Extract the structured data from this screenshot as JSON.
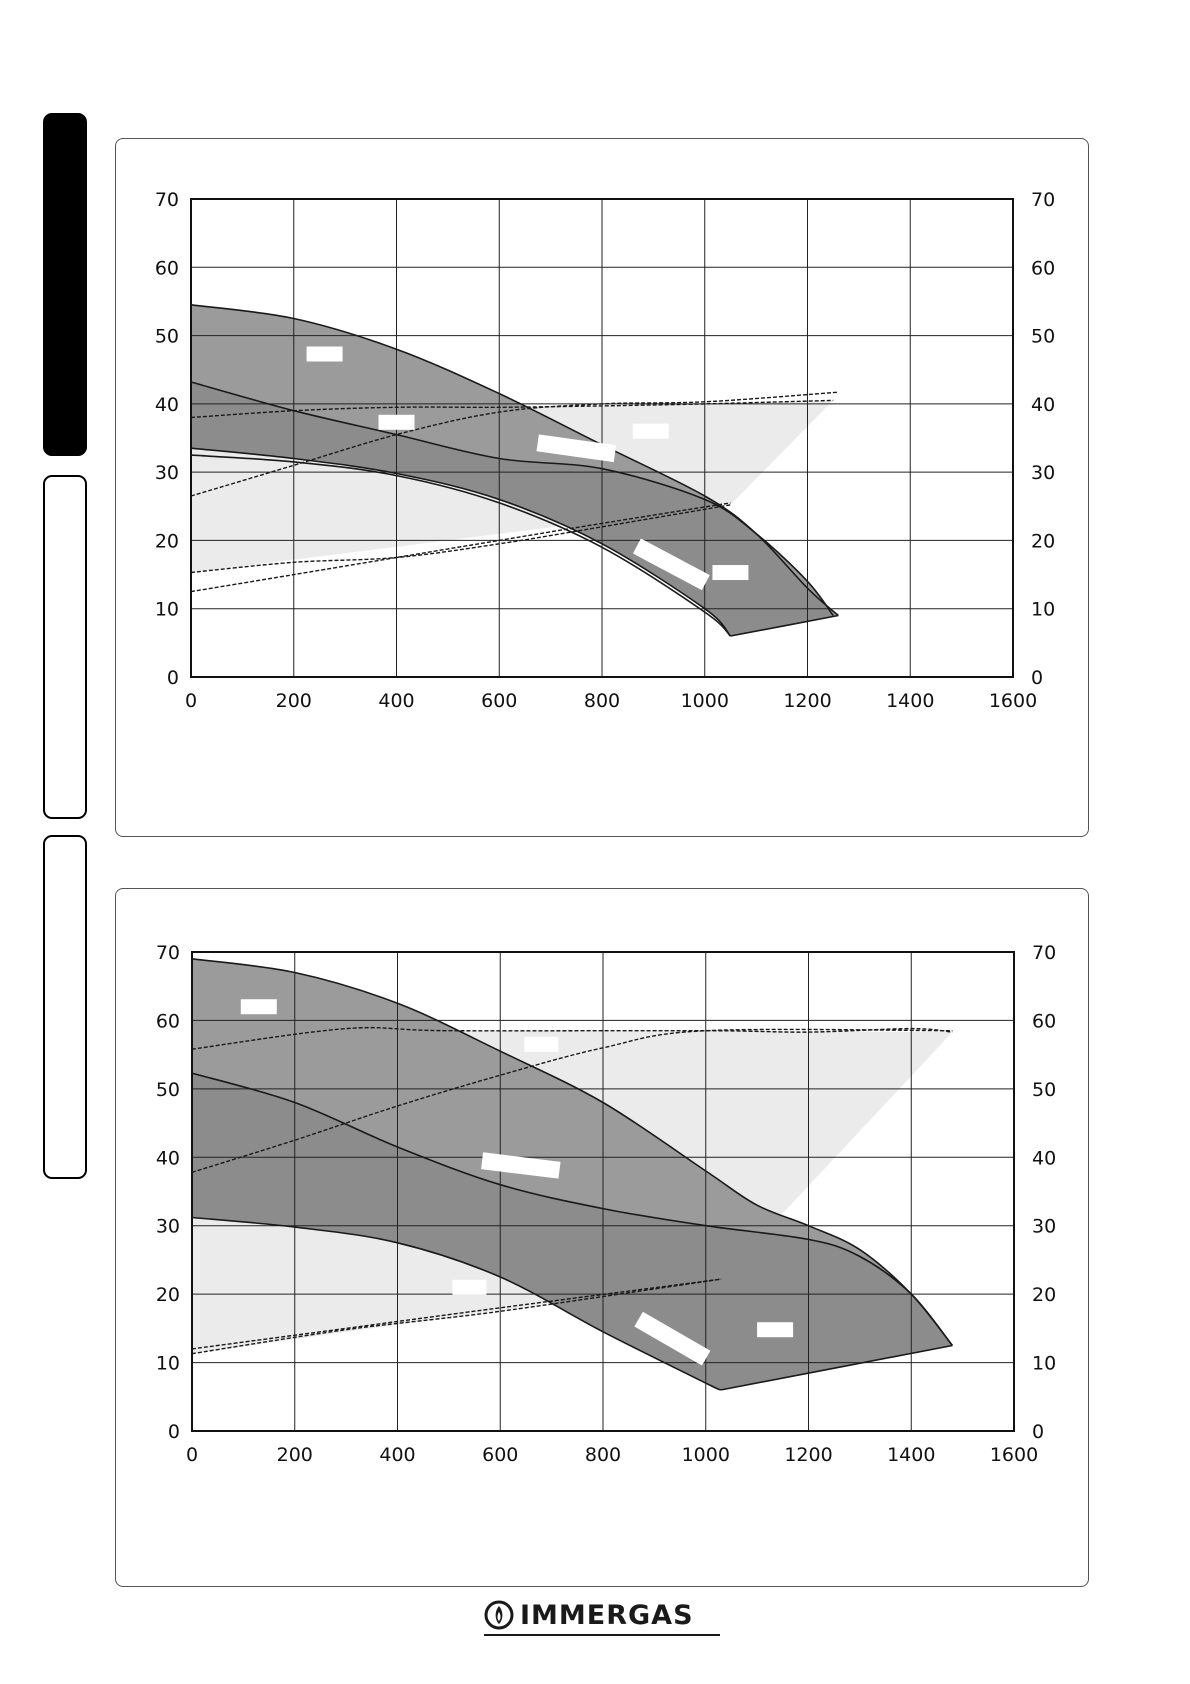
{
  "side_tabs": [
    {
      "state": "active"
    },
    {
      "state": "inactive"
    },
    {
      "state": "inactive"
    }
  ],
  "colors": {
    "dark_band": "#8a8a8a",
    "medium_band": "#9b9b9b",
    "light_area": "#ebebeb",
    "lines": "#1a1a1a",
    "grid": "#222222"
  },
  "chart_data": [
    {
      "type": "area",
      "title": "",
      "xlabel": "",
      "ylabel": "",
      "xlim": [
        0,
        1600
      ],
      "ylim": [
        0,
        70
      ],
      "x_ticks": [
        "0",
        "200",
        "400",
        "600",
        "800",
        "1000",
        "1200",
        "1400",
        "1600"
      ],
      "y_ticks": [
        "0",
        "10",
        "20",
        "30",
        "40",
        "50",
        "60",
        "70"
      ],
      "y_ticks_right": [
        "0",
        "10",
        "20",
        "30",
        "40",
        "50",
        "60",
        "70"
      ],
      "grid": true,
      "series": [
        {
          "role": "upper-curve",
          "style": "solid",
          "points": [
            [
              0,
              54.5
            ],
            [
              200,
              52.5
            ],
            [
              400,
              48
            ],
            [
              600,
              41.5
            ],
            [
              800,
              34
            ],
            [
              1000,
              26.5
            ],
            [
              1100,
              21
            ],
            [
              1200,
              13
            ],
            [
              1260,
              9
            ]
          ]
        },
        {
          "role": "middle-curve",
          "style": "solid",
          "points": [
            [
              0,
              43.2
            ],
            [
              200,
              39
            ],
            [
              400,
              35.5
            ],
            [
              600,
              32
            ],
            [
              800,
              30.5
            ],
            [
              1000,
              26
            ],
            [
              1100,
              21
            ],
            [
              1200,
              14
            ],
            [
              1250,
              9
            ]
          ]
        },
        {
          "role": "lower-curve",
          "style": "solid",
          "points": [
            [
              0,
              33.5
            ],
            [
              200,
              32
            ],
            [
              400,
              29.8
            ],
            [
              600,
              26
            ],
            [
              800,
              19.5
            ],
            [
              1000,
              10
            ],
            [
              1050,
              6
            ]
          ]
        },
        {
          "role": "lower-curve-2",
          "style": "solid",
          "points": [
            [
              0,
              32.5
            ],
            [
              200,
              31.5
            ],
            [
              400,
              29.5
            ],
            [
              600,
              25.5
            ],
            [
              800,
              19
            ],
            [
              1000,
              9.5
            ],
            [
              1050,
              6
            ]
          ]
        },
        {
          "role": "bottom-edge",
          "style": "solid",
          "points": [
            [
              1050,
              6
            ],
            [
              1260,
              9
            ]
          ]
        },
        {
          "role": "dashed-top",
          "style": "dashed",
          "points": [
            [
              0,
              38
            ],
            [
              200,
              39
            ],
            [
              400,
              39.5
            ],
            [
              600,
              39.5
            ],
            [
              800,
              39.7
            ],
            [
              1000,
              40
            ],
            [
              1250,
              40.5
            ]
          ]
        },
        {
          "role": "dashed-rising-1",
          "style": "dashed",
          "points": [
            [
              0,
              26.5
            ],
            [
              200,
              31
            ],
            [
              400,
              35.5
            ],
            [
              600,
              38.8
            ],
            [
              800,
              40
            ],
            [
              1000,
              40.3
            ],
            [
              1260,
              41.7
            ]
          ]
        },
        {
          "role": "dashed-rising-2",
          "style": "dashed",
          "points": [
            [
              0,
              15.3
            ],
            [
              200,
              16.8
            ],
            [
              400,
              17.5
            ],
            [
              600,
              19.5
            ],
            [
              800,
              22
            ],
            [
              1050,
              25.2
            ]
          ]
        },
        {
          "role": "dashed-rising-3",
          "style": "dashed",
          "points": [
            [
              0,
              12.5
            ],
            [
              200,
              15
            ],
            [
              400,
              17.5
            ],
            [
              600,
              20
            ],
            [
              800,
              22.5
            ],
            [
              1050,
              25.5
            ]
          ]
        }
      ],
      "light_area": [
        [
          0,
          33.5
        ],
        [
          0,
          15.3
        ],
        [
          1050,
          25.2
        ],
        [
          1250,
          40.5
        ],
        [
          1000,
          40
        ],
        [
          800,
          39.7
        ],
        [
          600,
          39.5
        ],
        [
          400,
          39.5
        ],
        [
          200,
          39
        ],
        [
          0,
          38
        ]
      ],
      "label_boxes": [
        {
          "x": 260,
          "y": 47.3,
          "w": 36,
          "h": 15,
          "rot": 0
        },
        {
          "x": 400,
          "y": 37.3,
          "w": 36,
          "h": 15,
          "rot": 0
        },
        {
          "x": 895,
          "y": 36,
          "w": 36,
          "h": 15,
          "rot": 0
        },
        {
          "x": 750,
          "y": 33.5,
          "w": 78,
          "h": 17,
          "rot": 8
        },
        {
          "x": 935,
          "y": 16.5,
          "w": 78,
          "h": 17,
          "rot": 28
        },
        {
          "x": 1050,
          "y": 15.3,
          "w": 36,
          "h": 15,
          "rot": 0
        }
      ]
    },
    {
      "type": "area",
      "title": "",
      "xlabel": "",
      "ylabel": "",
      "xlim": [
        0,
        1600
      ],
      "ylim": [
        0,
        70
      ],
      "x_ticks": [
        "0",
        "200",
        "400",
        "600",
        "800",
        "1000",
        "1200",
        "1400",
        "1600"
      ],
      "y_ticks": [
        "0",
        "10",
        "20",
        "30",
        "40",
        "50",
        "60",
        "70"
      ],
      "y_ticks_right": [
        "0",
        "10",
        "20",
        "30",
        "40",
        "50",
        "60",
        "70"
      ],
      "grid": true,
      "series": [
        {
          "role": "upper-curve",
          "style": "solid",
          "points": [
            [
              0,
              69
            ],
            [
              200,
              67
            ],
            [
              400,
              62.5
            ],
            [
              600,
              55.5
            ],
            [
              800,
              48
            ],
            [
              1000,
              38
            ],
            [
              1100,
              33
            ],
            [
              1200,
              30
            ],
            [
              1300,
              26.5
            ],
            [
              1400,
              20
            ],
            [
              1480,
              12.5
            ]
          ]
        },
        {
          "role": "middle-curve",
          "style": "solid",
          "points": [
            [
              0,
              52.3
            ],
            [
              200,
              48
            ],
            [
              400,
              41.5
            ],
            [
              600,
              36
            ],
            [
              800,
              32.5
            ],
            [
              1000,
              30
            ],
            [
              1200,
              28
            ],
            [
              1300,
              25.5
            ],
            [
              1400,
              20
            ],
            [
              1480,
              12.5
            ]
          ]
        },
        {
          "role": "lower-curve",
          "style": "solid",
          "points": [
            [
              0,
              31.2
            ],
            [
              200,
              29.8
            ],
            [
              400,
              27.5
            ],
            [
              600,
              22.5
            ],
            [
              800,
              14.5
            ],
            [
              1000,
              7
            ],
            [
              1030,
              6
            ]
          ]
        },
        {
          "role": "bottom-edge",
          "style": "solid",
          "points": [
            [
              1030,
              6
            ],
            [
              1480,
              12.5
            ]
          ]
        },
        {
          "role": "dashed-top",
          "style": "dashed",
          "points": [
            [
              0,
              55.8
            ],
            [
              300,
              58.8
            ],
            [
              500,
              58.5
            ],
            [
              1000,
              58.5
            ],
            [
              1200,
              58.3
            ],
            [
              1400,
              58.8
            ],
            [
              1480,
              58.3
            ]
          ]
        },
        {
          "role": "dashed-rising-1",
          "style": "dashed",
          "points": [
            [
              0,
              37.8
            ],
            [
              200,
              42.5
            ],
            [
              400,
              47.5
            ],
            [
              600,
              52
            ],
            [
              800,
              56
            ],
            [
              1000,
              58.5
            ],
            [
              1480,
              58.5
            ]
          ]
        },
        {
          "role": "dashed-rising-2",
          "style": "dashed",
          "points": [
            [
              0,
              11.3
            ],
            [
              300,
              14.8
            ],
            [
              600,
              17.5
            ],
            [
              1030,
              22.2
            ]
          ]
        },
        {
          "role": "dashed-rising-3",
          "style": "dashed",
          "points": [
            [
              0,
              12
            ],
            [
              300,
              15
            ],
            [
              600,
              18
            ],
            [
              1030,
              22.2
            ]
          ]
        }
      ],
      "light_area": [
        [
          0,
          31.2
        ],
        [
          0,
          11.3
        ],
        [
          1030,
          22.2
        ],
        [
          1480,
          58.3
        ],
        [
          1000,
          58.5
        ],
        [
          500,
          58.5
        ],
        [
          300,
          58.8
        ],
        [
          0,
          55.8
        ]
      ],
      "label_boxes": [
        {
          "x": 130,
          "y": 62,
          "w": 36,
          "h": 15,
          "rot": 0
        },
        {
          "x": 680,
          "y": 56.5,
          "w": 34,
          "h": 15,
          "rot": 0
        },
        {
          "x": 640,
          "y": 38.8,
          "w": 78,
          "h": 17,
          "rot": 7
        },
        {
          "x": 540,
          "y": 21,
          "w": 34,
          "h": 15,
          "rot": 0
        },
        {
          "x": 935,
          "y": 13.5,
          "w": 78,
          "h": 17,
          "rot": 30
        },
        {
          "x": 1135,
          "y": 14.8,
          "w": 36,
          "h": 15,
          "rot": 0
        }
      ]
    }
  ],
  "footer": {
    "logo_text": "IMMERGAS"
  }
}
